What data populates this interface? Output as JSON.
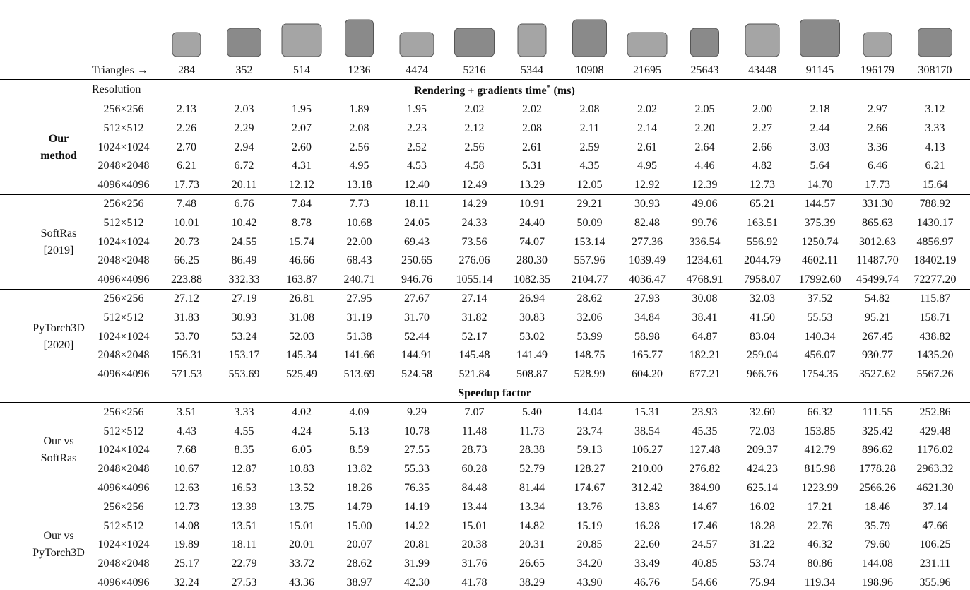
{
  "header": {
    "triangles_label": "Triangles →",
    "triangles": [
      "284",
      "352",
      "514",
      "1236",
      "4474",
      "5216",
      "5344",
      "10908",
      "21695",
      "25643",
      "43448",
      "91145",
      "196179",
      "308170"
    ],
    "resolution_label": "Resolution",
    "section1": {
      "main": "Rendering + gradients time",
      "mark": "*",
      "unit": "(ms)"
    },
    "section2": "Speedup factor"
  },
  "groups": [
    {
      "name": [
        "Our",
        "method"
      ],
      "bold": true,
      "section": 1,
      "rows": [
        {
          "res": "256×256",
          "values": [
            "2.13",
            "2.03",
            "1.95",
            "1.89",
            "1.95",
            "2.02",
            "2.02",
            "2.08",
            "2.02",
            "2.05",
            "2.00",
            "2.18",
            "2.97",
            "3.12"
          ]
        },
        {
          "res": "512×512",
          "values": [
            "2.26",
            "2.29",
            "2.07",
            "2.08",
            "2.23",
            "2.12",
            "2.08",
            "2.11",
            "2.14",
            "2.20",
            "2.27",
            "2.44",
            "2.66",
            "3.33"
          ]
        },
        {
          "res": "1024×1024",
          "values": [
            "2.70",
            "2.94",
            "2.60",
            "2.56",
            "2.52",
            "2.56",
            "2.61",
            "2.59",
            "2.61",
            "2.64",
            "2.66",
            "3.03",
            "3.36",
            "4.13"
          ]
        },
        {
          "res": "2048×2048",
          "values": [
            "6.21",
            "6.72",
            "4.31",
            "4.95",
            "4.53",
            "4.58",
            "5.31",
            "4.35",
            "4.95",
            "4.46",
            "4.82",
            "5.64",
            "6.46",
            "6.21"
          ]
        },
        {
          "res": "4096×4096",
          "values": [
            "17.73",
            "20.11",
            "12.12",
            "13.18",
            "12.40",
            "12.49",
            "13.29",
            "12.05",
            "12.92",
            "12.39",
            "12.73",
            "14.70",
            "17.73",
            "15.64"
          ]
        }
      ]
    },
    {
      "name": [
        "SoftRas",
        "[2019]"
      ],
      "bold": false,
      "section": 1,
      "rows": [
        {
          "res": "256×256",
          "values": [
            "7.48",
            "6.76",
            "7.84",
            "7.73",
            "18.11",
            "14.29",
            "10.91",
            "29.21",
            "30.93",
            "49.06",
            "65.21",
            "144.57",
            "331.30",
            "788.92"
          ]
        },
        {
          "res": "512×512",
          "values": [
            "10.01",
            "10.42",
            "8.78",
            "10.68",
            "24.05",
            "24.33",
            "24.40",
            "50.09",
            "82.48",
            "99.76",
            "163.51",
            "375.39",
            "865.63",
            "1430.17"
          ]
        },
        {
          "res": "1024×1024",
          "values": [
            "20.73",
            "24.55",
            "15.74",
            "22.00",
            "69.43",
            "73.56",
            "74.07",
            "153.14",
            "277.36",
            "336.54",
            "556.92",
            "1250.74",
            "3012.63",
            "4856.97"
          ]
        },
        {
          "res": "2048×2048",
          "values": [
            "66.25",
            "86.49",
            "46.66",
            "68.43",
            "250.65",
            "276.06",
            "280.30",
            "557.96",
            "1039.49",
            "1234.61",
            "2044.79",
            "4602.11",
            "11487.70",
            "18402.19"
          ]
        },
        {
          "res": "4096×4096",
          "values": [
            "223.88",
            "332.33",
            "163.87",
            "240.71",
            "946.76",
            "1055.14",
            "1082.35",
            "2104.77",
            "4036.47",
            "4768.91",
            "7958.07",
            "17992.60",
            "45499.74",
            "72277.20"
          ]
        }
      ]
    },
    {
      "name": [
        "PyTorch3D",
        "[2020]"
      ],
      "bold": false,
      "section": 1,
      "rows": [
        {
          "res": "256×256",
          "values": [
            "27.12",
            "27.19",
            "26.81",
            "27.95",
            "27.67",
            "27.14",
            "26.94",
            "28.62",
            "27.93",
            "30.08",
            "32.03",
            "37.52",
            "54.82",
            "115.87"
          ]
        },
        {
          "res": "512×512",
          "values": [
            "31.83",
            "30.93",
            "31.08",
            "31.19",
            "31.70",
            "31.82",
            "30.83",
            "32.06",
            "34.84",
            "38.41",
            "41.50",
            "55.53",
            "95.21",
            "158.71"
          ]
        },
        {
          "res": "1024×1024",
          "values": [
            "53.70",
            "53.24",
            "52.03",
            "51.38",
            "52.44",
            "52.17",
            "53.02",
            "53.99",
            "58.98",
            "64.87",
            "83.04",
            "140.34",
            "267.45",
            "438.82"
          ]
        },
        {
          "res": "2048×2048",
          "values": [
            "156.31",
            "153.17",
            "145.34",
            "141.66",
            "144.91",
            "145.48",
            "141.49",
            "148.75",
            "165.77",
            "182.21",
            "259.04",
            "456.07",
            "930.77",
            "1435.20"
          ]
        },
        {
          "res": "4096×4096",
          "values": [
            "571.53",
            "553.69",
            "525.49",
            "513.69",
            "524.58",
            "521.84",
            "508.87",
            "528.99",
            "604.20",
            "677.21",
            "966.76",
            "1754.35",
            "3527.62",
            "5567.26"
          ]
        }
      ]
    },
    {
      "name": [
        "Our vs",
        "SoftRas"
      ],
      "bold": false,
      "section": 2,
      "rows": [
        {
          "res": "256×256",
          "values": [
            "3.51",
            "3.33",
            "4.02",
            "4.09",
            "9.29",
            "7.07",
            "5.40",
            "14.04",
            "15.31",
            "23.93",
            "32.60",
            "66.32",
            "111.55",
            "252.86"
          ]
        },
        {
          "res": "512×512",
          "values": [
            "4.43",
            "4.55",
            "4.24",
            "5.13",
            "10.78",
            "11.48",
            "11.73",
            "23.74",
            "38.54",
            "45.35",
            "72.03",
            "153.85",
            "325.42",
            "429.48"
          ]
        },
        {
          "res": "1024×1024",
          "values": [
            "7.68",
            "8.35",
            "6.05",
            "8.59",
            "27.55",
            "28.73",
            "28.38",
            "59.13",
            "106.27",
            "127.48",
            "209.37",
            "412.79",
            "896.62",
            "1176.02"
          ]
        },
        {
          "res": "2048×2048",
          "values": [
            "10.67",
            "12.87",
            "10.83",
            "13.82",
            "55.33",
            "60.28",
            "52.79",
            "128.27",
            "210.00",
            "276.82",
            "424.23",
            "815.98",
            "1778.28",
            "2963.32"
          ]
        },
        {
          "res": "4096×4096",
          "values": [
            "12.63",
            "16.53",
            "13.52",
            "18.26",
            "76.35",
            "84.48",
            "81.44",
            "174.67",
            "312.42",
            "384.90",
            "625.14",
            "1223.99",
            "2566.26",
            "4621.30"
          ]
        }
      ]
    },
    {
      "name": [
        "Our vs",
        "PyTorch3D"
      ],
      "bold": false,
      "section": 2,
      "rows": [
        {
          "res": "256×256",
          "values": [
            "12.73",
            "13.39",
            "13.75",
            "14.79",
            "14.19",
            "13.44",
            "13.34",
            "13.76",
            "13.83",
            "14.67",
            "16.02",
            "17.21",
            "18.46",
            "37.14"
          ]
        },
        {
          "res": "512×512",
          "values": [
            "14.08",
            "13.51",
            "15.01",
            "15.00",
            "14.22",
            "15.01",
            "14.82",
            "15.19",
            "16.28",
            "17.46",
            "18.28",
            "22.76",
            "35.79",
            "47.66"
          ]
        },
        {
          "res": "1024×1024",
          "values": [
            "19.89",
            "18.11",
            "20.01",
            "20.07",
            "20.81",
            "20.38",
            "20.31",
            "20.85",
            "22.60",
            "24.57",
            "31.22",
            "46.32",
            "79.60",
            "106.25"
          ]
        },
        {
          "res": "2048×2048",
          "values": [
            "25.17",
            "22.79",
            "33.72",
            "28.62",
            "31.99",
            "31.76",
            "26.65",
            "34.20",
            "33.49",
            "40.85",
            "53.74",
            "80.86",
            "144.08",
            "231.11"
          ]
        },
        {
          "res": "4096×4096",
          "values": [
            "32.24",
            "27.53",
            "43.36",
            "38.97",
            "42.30",
            "41.78",
            "38.29",
            "43.90",
            "46.76",
            "54.66",
            "75.94",
            "119.34",
            "198.96",
            "355.96"
          ]
        }
      ]
    }
  ]
}
